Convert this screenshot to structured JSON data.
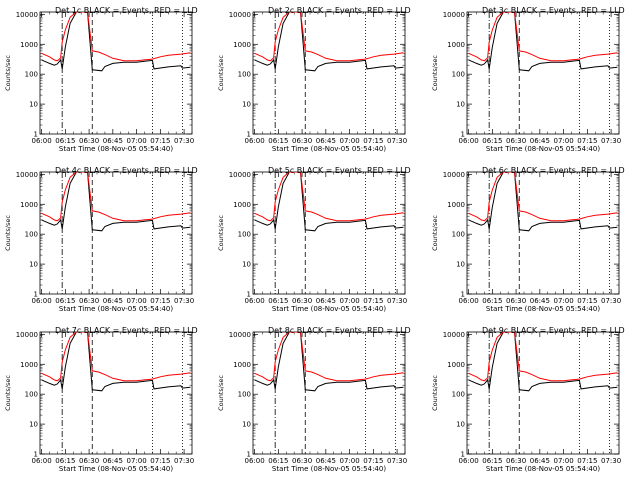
{
  "chart_data": {
    "type": "line",
    "layout": "3x3 grid",
    "xlabel": "Start Time (08-Nov-05 05:54:40)",
    "ylabel": "Counts/sec",
    "yscale": "log",
    "ylim": [
      1,
      12000
    ],
    "y_ticks": [
      1,
      10,
      100,
      1000,
      10000
    ],
    "y_tick_labels": [
      "1",
      "10",
      "100",
      "1000",
      "10000"
    ],
    "x_ticks": [
      "06:00",
      "06:15",
      "06:30",
      "06:45",
      "07:00",
      "07:15",
      "07:30"
    ],
    "series_colors": {
      "events": "#000000",
      "lld": "#ff0000"
    },
    "series_legend_text": "BLACK = Events, RED = LLD",
    "vertical_markers": {
      "dash_dot": "06:13",
      "dashed": "06:32",
      "dotted": [
        "07:10",
        "07:29"
      ]
    },
    "panels": [
      {
        "title": "Det 1c BLACK = Events, RED = LLD"
      },
      {
        "title": "Det 2c BLACK = Events, RED = LLD"
      },
      {
        "title": "Det 3c BLACK = Events, RED = LLD"
      },
      {
        "title": "Det 4c BLACK = Events, RED = LLD"
      },
      {
        "title": "Det 5c BLACK = Events, RED = LLD"
      },
      {
        "title": "Det 6c BLACK = Events, RED = LLD"
      },
      {
        "title": "Det 7c BLACK = Events, RED = LLD"
      },
      {
        "title": "Det 8c BLACK = Events, RED = LLD"
      },
      {
        "title": "Det 9c BLACK = Events, RED = LLD"
      }
    ],
    "series": [
      {
        "name": "Events",
        "color": "#000000",
        "points": [
          [
            "06:00",
            300
          ],
          [
            "06:05",
            230
          ],
          [
            "06:08",
            200
          ],
          [
            "06:10",
            220
          ],
          [
            "06:12",
            300
          ],
          [
            "06:13",
            150
          ],
          [
            "06:15",
            800
          ],
          [
            "06:18",
            5000
          ],
          [
            "06:22",
            12000
          ],
          [
            "06:29",
            12000
          ],
          [
            "06:32",
            140
          ],
          [
            "06:38",
            130
          ],
          [
            "06:40",
            180
          ],
          [
            "06:45",
            230
          ],
          [
            "06:52",
            250
          ],
          [
            "07:00",
            250
          ],
          [
            "07:05",
            270
          ],
          [
            "07:10",
            290
          ],
          [
            "07:11",
            150
          ],
          [
            "07:20",
            175
          ],
          [
            "07:28",
            190
          ],
          [
            "07:29",
            160
          ],
          [
            "07:34",
            170
          ]
        ]
      },
      {
        "name": "LLD",
        "color": "#ff0000",
        "points": [
          [
            "06:00",
            500
          ],
          [
            "06:05",
            380
          ],
          [
            "06:08",
            300
          ],
          [
            "06:10",
            280
          ],
          [
            "06:12",
            350
          ],
          [
            "06:13",
            1200
          ],
          [
            "06:15",
            3000
          ],
          [
            "06:18",
            8000
          ],
          [
            "06:22",
            12000
          ],
          [
            "06:29",
            12000
          ],
          [
            "06:32",
            600
          ],
          [
            "06:36",
            550
          ],
          [
            "06:40",
            450
          ],
          [
            "06:45",
            340
          ],
          [
            "06:52",
            280
          ],
          [
            "07:00",
            280
          ],
          [
            "07:05",
            300
          ],
          [
            "07:10",
            320
          ],
          [
            "07:15",
            380
          ],
          [
            "07:20",
            430
          ],
          [
            "07:28",
            470
          ],
          [
            "07:34",
            520
          ]
        ]
      }
    ]
  }
}
